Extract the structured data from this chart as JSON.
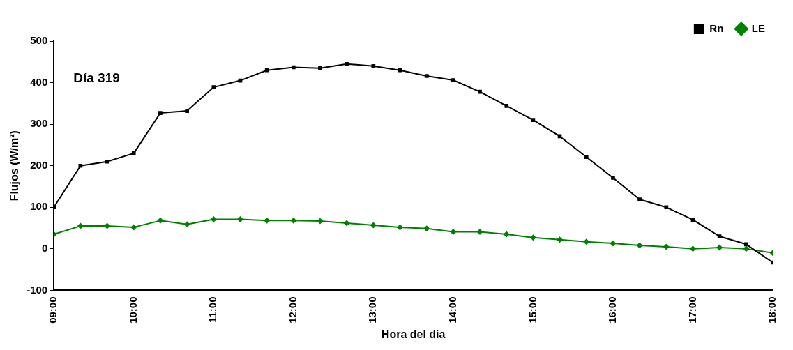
{
  "chart_data": {
    "type": "line",
    "xlabel": "Hora del día",
    "ylabel": "Flujos (W/m²)",
    "annotations": [
      "Día 319"
    ],
    "x": [
      9,
      9.333,
      9.667,
      10,
      10.333,
      10.667,
      11,
      11.333,
      11.667,
      12,
      12.333,
      12.667,
      13,
      13.333,
      13.667,
      14,
      14.333,
      14.667,
      15,
      15.333,
      15.667,
      16,
      16.333,
      16.667,
      17,
      17.333,
      17.667,
      18
    ],
    "series": [
      {
        "name": "Rn",
        "color": "#000000",
        "marker": "square",
        "values": [
          100,
          200,
          210,
          230,
          327,
          332,
          389,
          405,
          430,
          437,
          435,
          445,
          440,
          430,
          416,
          406,
          378,
          344,
          310,
          271,
          221,
          171,
          119,
          100,
          70,
          30,
          11,
          -33
        ]
      },
      {
        "name": "LE",
        "color": "#008000",
        "marker": "diamond",
        "values": [
          35,
          55,
          55,
          52,
          68,
          59,
          71,
          71,
          68,
          68,
          67,
          62,
          57,
          52,
          49,
          41,
          41,
          35,
          27,
          22,
          17,
          13,
          8,
          5,
          0,
          3,
          0,
          -10
        ]
      }
    ],
    "xlim": [
      9,
      18
    ],
    "xticks": [
      {
        "value": 9,
        "label": "09:00"
      },
      {
        "value": 10,
        "label": "10:00"
      },
      {
        "value": 11,
        "label": "11:00"
      },
      {
        "value": 12,
        "label": "12:00"
      },
      {
        "value": 13,
        "label": "13:00"
      },
      {
        "value": 14,
        "label": "14:00"
      },
      {
        "value": 15,
        "label": "15:00"
      },
      {
        "value": 16,
        "label": "16:00"
      },
      {
        "value": 17,
        "label": "17:00"
      },
      {
        "value": 18,
        "label": "18:00"
      }
    ],
    "ylim": [
      -100,
      500
    ],
    "yticks": [
      -100,
      0,
      100,
      200,
      300,
      400,
      500
    ],
    "grid": false,
    "legend": "top right",
    "line_style": "solid"
  }
}
